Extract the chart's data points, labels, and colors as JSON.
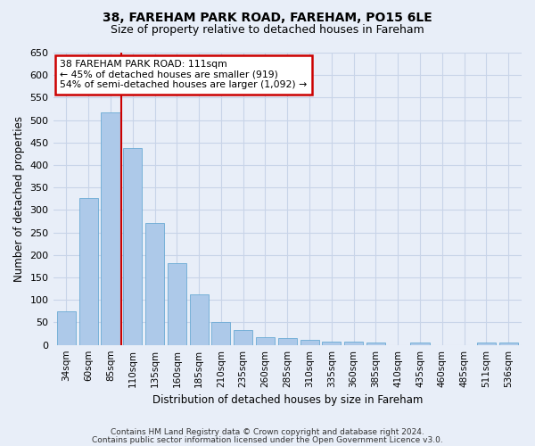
{
  "title": "38, FAREHAM PARK ROAD, FAREHAM, PO15 6LE",
  "subtitle": "Size of property relative to detached houses in Fareham",
  "xlabel": "Distribution of detached houses by size in Fareham",
  "ylabel": "Number of detached properties",
  "categories": [
    "34sqm",
    "60sqm",
    "85sqm",
    "110sqm",
    "135sqm",
    "160sqm",
    "185sqm",
    "210sqm",
    "235sqm",
    "260sqm",
    "285sqm",
    "310sqm",
    "335sqm",
    "360sqm",
    "385sqm",
    "410sqm",
    "435sqm",
    "460sqm",
    "485sqm",
    "511sqm",
    "536sqm"
  ],
  "values": [
    75,
    327,
    518,
    437,
    271,
    181,
    113,
    50,
    34,
    18,
    15,
    12,
    8,
    7,
    5,
    0,
    5,
    0,
    0,
    5,
    5
  ],
  "bar_color": "#adc9e9",
  "bar_edge_color": "#6aaad4",
  "marker_bin_index": 3,
  "annotation_line1": "38 FAREHAM PARK ROAD: 111sqm",
  "annotation_line2": "← 45% of detached houses are smaller (919)",
  "annotation_line3": "54% of semi-detached houses are larger (1,092) →",
  "annotation_box_color": "#ffffff",
  "annotation_box_edge_color": "#cc0000",
  "vline_color": "#cc0000",
  "ylim": [
    0,
    650
  ],
  "yticks": [
    0,
    50,
    100,
    150,
    200,
    250,
    300,
    350,
    400,
    450,
    500,
    550,
    600,
    650
  ],
  "grid_color": "#c8d4e8",
  "footer_line1": "Contains HM Land Registry data © Crown copyright and database right 2024.",
  "footer_line2": "Contains public sector information licensed under the Open Government Licence v3.0.",
  "bg_color": "#e8eef8",
  "plot_bg_color": "#e8eef8",
  "title_fontsize": 10,
  "subtitle_fontsize": 9
}
